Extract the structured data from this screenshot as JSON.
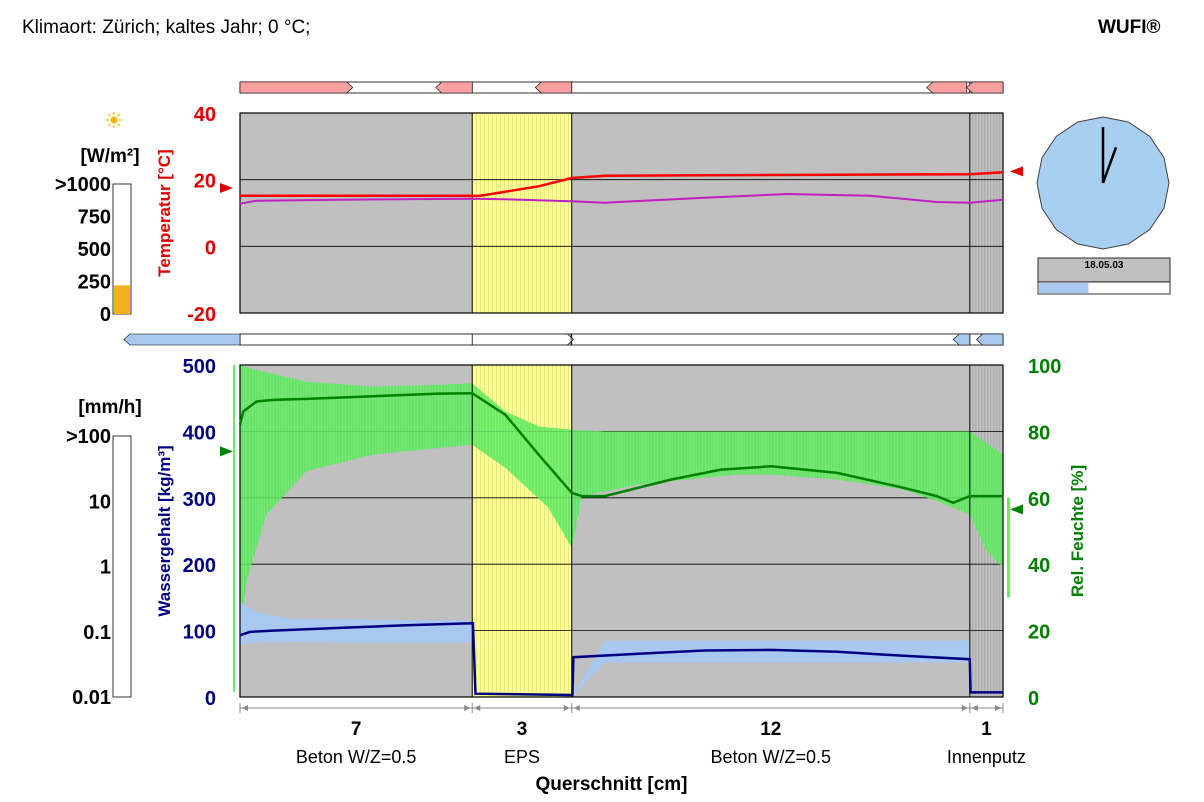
{
  "header": {
    "title": "Klimaort: Zürich; kaltes Jahr; 0 °C;",
    "brand": "WUFI®"
  },
  "radiation": {
    "icon": "sun-icon",
    "unit": "[W/m²]",
    "ticks": [
      ">1000",
      "750",
      "500",
      "250",
      "0"
    ],
    "level_fraction": 0.22
  },
  "rain": {
    "unit": "[mm/h]",
    "ticks": [
      ">100",
      "10",
      "1",
      "0.1",
      "0.01"
    ]
  },
  "clock": {
    "date": "18.05.03",
    "progress_fraction": 0.38,
    "hour_hand_deg": 20,
    "minute_hand_deg": 0
  },
  "colors": {
    "temperature": "#ff0000",
    "dewpoint": "#c020c0",
    "rel_humidity": "#008000",
    "rel_humidity_band": "#66ee66",
    "water_content": "#000080",
    "water_content_band": "#a8c8f0",
    "plot_background": "#c0c0c0",
    "eps_layer": "#ffff99",
    "clock_face": "#a8cff0"
  },
  "chart_data": [
    {
      "type": "line",
      "name": "temperature-plot",
      "ylabel": "Temperatur [°C]",
      "yticks": [
        "40",
        "20",
        "0",
        "-20"
      ],
      "ylim": [
        -20,
        40
      ],
      "xlim": [
        0,
        23
      ],
      "series": [
        {
          "key": "temperature",
          "x": [
            0,
            7,
            7.2,
            9,
            10,
            11,
            14,
            18,
            22,
            23
          ],
          "values": [
            15.2,
            15.2,
            15.1,
            18,
            20.5,
            21.2,
            21.3,
            21.5,
            21.6,
            22.2
          ]
        },
        {
          "key": "dewpoint",
          "x": [
            0,
            0.5,
            3,
            7,
            8,
            10,
            11,
            14,
            16.5,
            19,
            21,
            22,
            23
          ],
          "values": [
            12.8,
            13.7,
            14,
            14.3,
            14.1,
            13.5,
            13.1,
            14.6,
            15.7,
            15.2,
            13.3,
            13.1,
            14
          ]
        }
      ],
      "indicators": {
        "left_arrow_value": 17.5,
        "right_arrow_value": 22.5
      },
      "grid": true
    },
    {
      "type": "line",
      "name": "moisture-plot",
      "xlabel": "Querschnitt [cm]",
      "ylabel_left": "Wassergehalt [kg/m³]",
      "ylabel_right": "Rel. Feuchte [%]",
      "yticks_left": [
        "500",
        "400",
        "300",
        "200",
        "100",
        "0"
      ],
      "yticks_right": [
        "100",
        "80",
        "60",
        "40",
        "20",
        "0"
      ],
      "ylim_left": [
        0,
        500
      ],
      "ylim_right": [
        0,
        100
      ],
      "xlim": [
        0,
        23
      ],
      "layers": [
        {
          "thickness": "7",
          "material": "Beton W/Z=0.5",
          "from": 0,
          "to": 7
        },
        {
          "thickness": "3",
          "material": "EPS",
          "from": 7,
          "to": 10
        },
        {
          "thickness": "12",
          "material": "Beton W/Z=0.5",
          "from": 10,
          "to": 22
        },
        {
          "thickness": "1",
          "material": "Innenputz",
          "from": 22,
          "to": 23
        }
      ],
      "series": [
        {
          "key": "rel_humidity",
          "axis": "right",
          "x": [
            0,
            0.1,
            0.5,
            1,
            2,
            4,
            6,
            7,
            8,
            9,
            10,
            10.3,
            11,
            13,
            14.5,
            16,
            18,
            20,
            21,
            21.5,
            22,
            23
          ],
          "values": [
            82,
            86,
            89,
            89.5,
            89.8,
            90.6,
            91.4,
            91.5,
            85,
            73,
            61.5,
            60.5,
            60.5,
            65.5,
            68.5,
            69.5,
            67.5,
            63,
            60.5,
            58.5,
            60.5,
            60.5
          ]
        },
        {
          "key": "rel_humidity_band_upper",
          "axis": "right",
          "x": [
            0,
            0.3,
            2,
            4,
            6,
            7,
            8,
            9,
            10,
            11,
            22,
            23
          ],
          "values": [
            100,
            99,
            95,
            93.5,
            94,
            94.5,
            86,
            81.5,
            80.5,
            80,
            80,
            73
          ]
        },
        {
          "key": "rel_humidity_band_lower",
          "axis": "right",
          "x": [
            0,
            0.2,
            0.8,
            2,
            4,
            7,
            8,
            9.3,
            10,
            10.3,
            12,
            14,
            15,
            16,
            18,
            20,
            21,
            22,
            22.5,
            23
          ],
          "values": [
            18,
            35,
            55,
            68,
            73,
            76,
            69,
            57,
            45,
            60.5,
            64,
            66,
            67,
            67,
            65.5,
            62.5,
            59,
            55,
            44,
            39
          ]
        },
        {
          "key": "water_content",
          "axis": "left",
          "x": [
            0,
            0.3,
            1,
            3,
            5,
            7,
            7.02,
            7.1,
            10,
            10.02,
            10.05,
            12,
            14,
            16,
            18,
            20,
            22,
            22.02,
            23
          ],
          "values": [
            93,
            98,
            100,
            104,
            108,
            111,
            111,
            5,
            3,
            3,
            60,
            65,
            70,
            71,
            68,
            62,
            57,
            7,
            7
          ]
        },
        {
          "key": "water_content_band_upper",
          "axis": "left",
          "x": [
            0,
            0.5,
            1.5,
            3,
            7,
            10,
            11,
            20,
            22
          ],
          "values": [
            143,
            128,
            118,
            117,
            115,
            0,
            85,
            85,
            85
          ]
        },
        {
          "key": "water_content_band_lower",
          "axis": "left",
          "x": [
            0,
            0.5,
            1.5,
            3,
            7,
            10,
            11,
            20,
            22
          ],
          "values": [
            78,
            82,
            83,
            82,
            82,
            0,
            52,
            52,
            52
          ]
        }
      ],
      "indicators": {
        "left_arrow_value": 74,
        "right_arrow_value": 56.5
      },
      "grid": true
    }
  ]
}
